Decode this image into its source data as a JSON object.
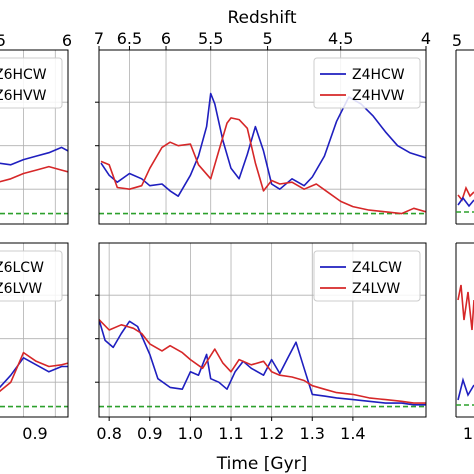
{
  "figure": {
    "top_axis_title": "Redshift",
    "bottom_axis_title": "Time [Gyr]",
    "left_col_bottom_tick": "0.9",
    "left_col_top_ticks": [
      "5",
      "6"
    ],
    "right_col_top_tick": "5",
    "right_col_bottom_tick": "1"
  },
  "chart_data": [
    {
      "type": "line",
      "panel": "top-middle",
      "x_label_top": "Redshift",
      "top_ticks": [
        "7",
        "6.5",
        "6",
        "5.5",
        "5",
        "4.5",
        "4"
      ],
      "top_tick_time": [
        0.775,
        0.85,
        0.94,
        1.05,
        1.19,
        1.37,
        1.58
      ],
      "xlim": [
        0.775,
        1.58
      ],
      "ylim": [
        0,
        10
      ],
      "legend": "top-right",
      "reference_line": {
        "y": 0.6,
        "color": "#2ca02c",
        "style": "dashed"
      },
      "series": [
        {
          "name": "Z4HCW",
          "color": "#1f1fbf",
          "x": [
            0.78,
            0.8,
            0.82,
            0.85,
            0.88,
            0.9,
            0.93,
            0.95,
            0.97,
            1.0,
            1.02,
            1.04,
            1.05,
            1.06,
            1.08,
            1.1,
            1.12,
            1.14,
            1.16,
            1.18,
            1.2,
            1.22,
            1.25,
            1.28,
            1.3,
            1.33,
            1.36,
            1.39,
            1.42,
            1.45,
            1.48,
            1.51,
            1.54,
            1.58
          ],
          "y": [
            3.5,
            2.8,
            2.4,
            2.9,
            2.6,
            2.2,
            2.3,
            1.9,
            1.6,
            2.8,
            3.9,
            5.6,
            7.5,
            6.9,
            4.8,
            3.2,
            2.6,
            4.0,
            5.6,
            4.2,
            2.3,
            2.0,
            2.6,
            2.2,
            2.7,
            3.9,
            5.9,
            7.3,
            6.9,
            6.2,
            5.3,
            4.5,
            4.1,
            3.8
          ]
        },
        {
          "name": "Z4HVW",
          "color": "#d62728",
          "x": [
            0.78,
            0.8,
            0.82,
            0.85,
            0.88,
            0.9,
            0.93,
            0.95,
            0.97,
            1.0,
            1.02,
            1.05,
            1.07,
            1.09,
            1.1,
            1.12,
            1.14,
            1.16,
            1.18,
            1.2,
            1.22,
            1.25,
            1.28,
            1.31,
            1.34,
            1.37,
            1.4,
            1.44,
            1.48,
            1.52,
            1.55,
            1.58
          ],
          "y": [
            3.6,
            3.4,
            2.1,
            2.0,
            2.2,
            3.2,
            4.4,
            4.7,
            4.5,
            4.6,
            3.4,
            2.6,
            4.2,
            5.8,
            6.1,
            6.0,
            5.5,
            3.5,
            1.9,
            2.5,
            2.3,
            2.4,
            2.0,
            2.3,
            1.8,
            1.3,
            1.0,
            0.8,
            0.7,
            0.6,
            0.9,
            0.7
          ]
        }
      ]
    },
    {
      "type": "line",
      "panel": "bottom-middle",
      "x_label": "Time [Gyr]",
      "bottom_ticks": [
        "0.8",
        "0.9",
        "1.0",
        "1.1",
        "1.2",
        "1.3",
        "1.4"
      ],
      "xlim": [
        0.775,
        1.58
      ],
      "ylim": [
        0,
        10
      ],
      "legend": "top-right",
      "reference_line": {
        "y": 0.6,
        "color": "#2ca02c",
        "style": "dashed"
      },
      "series": [
        {
          "name": "Z4LCW",
          "color": "#1f1fbf",
          "x": [
            0.775,
            0.79,
            0.81,
            0.83,
            0.85,
            0.87,
            0.9,
            0.92,
            0.95,
            0.98,
            1.0,
            1.02,
            1.04,
            1.05,
            1.07,
            1.09,
            1.11,
            1.13,
            1.15,
            1.18,
            1.2,
            1.22,
            1.24,
            1.26,
            1.28,
            1.3,
            1.33,
            1.36,
            1.4,
            1.44,
            1.48,
            1.52,
            1.55,
            1.58
          ],
          "y": [
            5.6,
            4.4,
            4.0,
            4.8,
            5.5,
            5.2,
            3.6,
            2.2,
            1.7,
            1.6,
            2.6,
            2.4,
            3.6,
            2.2,
            2.0,
            1.6,
            2.6,
            3.2,
            2.8,
            2.4,
            3.3,
            2.5,
            3.4,
            4.3,
            2.8,
            1.3,
            1.2,
            1.1,
            1.0,
            0.9,
            0.8,
            0.8,
            0.7,
            0.7
          ]
        },
        {
          "name": "Z4LVW",
          "color": "#d62728",
          "x": [
            0.775,
            0.8,
            0.83,
            0.86,
            0.88,
            0.9,
            0.93,
            0.95,
            0.98,
            1.0,
            1.03,
            1.06,
            1.08,
            1.1,
            1.12,
            1.15,
            1.18,
            1.2,
            1.22,
            1.25,
            1.28,
            1.3,
            1.33,
            1.36,
            1.4,
            1.44,
            1.48,
            1.52,
            1.55,
            1.58
          ],
          "y": [
            5.6,
            5.0,
            5.3,
            5.1,
            4.8,
            4.2,
            3.8,
            4.1,
            3.7,
            3.3,
            2.8,
            3.9,
            3.1,
            2.6,
            3.3,
            3.0,
            3.2,
            2.6,
            2.4,
            2.3,
            2.1,
            1.8,
            1.6,
            1.4,
            1.3,
            1.1,
            1.0,
            0.9,
            0.8,
            0.8
          ]
        }
      ]
    },
    {
      "type": "line",
      "panel": "top-left (partial)",
      "xlim": [
        0.8,
        0.97
      ],
      "ylim": [
        0,
        10
      ],
      "legend": "top-right",
      "reference_line": {
        "y": 0.6,
        "color": "#2ca02c",
        "style": "dashed"
      },
      "series": [
        {
          "name": "Z6HCW",
          "color": "#1f1fbf",
          "x": [
            0.8,
            0.82,
            0.84,
            0.86,
            0.88,
            0.9,
            0.92,
            0.94,
            0.96,
            0.97
          ],
          "y": [
            3.3,
            3.4,
            3.2,
            3.5,
            3.4,
            3.7,
            3.9,
            4.1,
            4.4,
            4.2
          ]
        },
        {
          "name": "Z6HVW",
          "color": "#d62728",
          "x": [
            0.8,
            0.82,
            0.84,
            0.86,
            0.88,
            0.9,
            0.92,
            0.94,
            0.96,
            0.97
          ],
          "y": [
            2.0,
            1.9,
            2.1,
            2.4,
            2.6,
            2.9,
            3.1,
            3.3,
            3.1,
            3.0
          ]
        }
      ]
    },
    {
      "type": "line",
      "panel": "bottom-left (partial)",
      "xlim": [
        0.8,
        0.97
      ],
      "ylim": [
        0,
        10
      ],
      "legend": "top-right",
      "reference_line": {
        "y": 0.6,
        "color": "#2ca02c",
        "style": "dashed"
      },
      "series": [
        {
          "name": "Z6LCW",
          "color": "#1f1fbf",
          "x": [
            0.8,
            0.82,
            0.84,
            0.86,
            0.88,
            0.9,
            0.92,
            0.94,
            0.96,
            0.97
          ],
          "y": [
            2.5,
            1.9,
            1.6,
            1.6,
            2.4,
            3.4,
            3.0,
            2.6,
            2.9,
            2.9
          ]
        },
        {
          "name": "Z6LVW",
          "color": "#d62728",
          "x": [
            0.8,
            0.82,
            0.84,
            0.86,
            0.88,
            0.9,
            0.92,
            0.94,
            0.96,
            0.97
          ],
          "y": [
            3.1,
            3.3,
            2.3,
            1.4,
            2.0,
            3.7,
            3.2,
            2.9,
            3.0,
            3.1
          ]
        }
      ]
    }
  ]
}
